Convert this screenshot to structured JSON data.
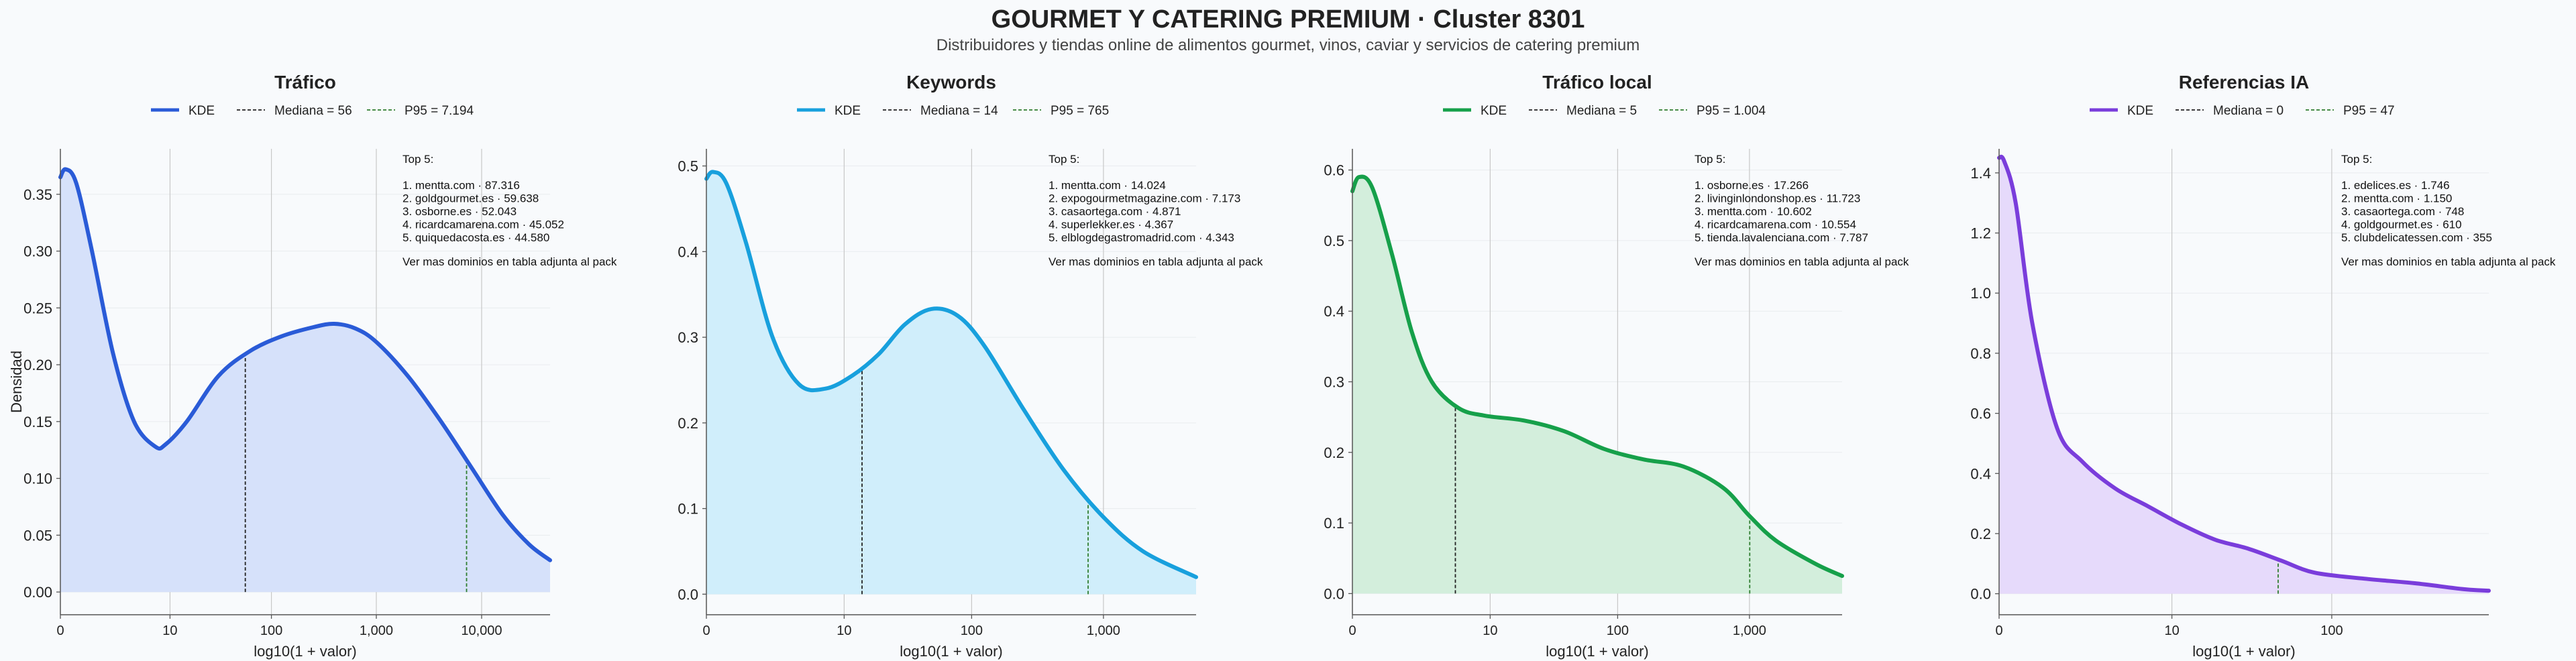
{
  "title": "GOURMET Y CATERING PREMIUM · Cluster 8301",
  "subtitle": "Distribuidores y tiendas online de alimentos gourmet, vinos, caviar y servicios de catering premium",
  "ylabel": "Densidad",
  "chart_data": [
    {
      "type": "area",
      "title": "Tráfico",
      "xlabel": "log10(1 + valor)",
      "ylabel": "Densidad",
      "color": "#2a5bd7",
      "fill": "#d6e1fa",
      "xlim": [
        0,
        4.65
      ],
      "ylim": [
        -0.02,
        0.39
      ],
      "y_ticks": [
        0.0,
        0.05,
        0.1,
        0.15,
        0.2,
        0.25,
        0.3,
        0.35
      ],
      "y_tick_labels": [
        "0.00",
        "0.05",
        "0.10",
        "0.15",
        "0.20",
        "0.25",
        "0.30",
        "0.35"
      ],
      "x_ticks": [
        0,
        1.041,
        2.004,
        3.0,
        4.0
      ],
      "x_tick_labels": [
        "0",
        "10",
        "100",
        "1,000",
        "10,000"
      ],
      "legend": {
        "kde": "KDE",
        "median": "Mediana = 56",
        "p95": "P95 = 7.194"
      },
      "median_x": 1.756,
      "p95_x": 3.857,
      "series": [
        {
          "name": "KDE",
          "x": [
            0,
            0.05,
            0.15,
            0.3,
            0.5,
            0.7,
            0.9,
            1.0,
            1.2,
            1.5,
            1.8,
            2.1,
            2.4,
            2.6,
            2.8,
            3.0,
            3.3,
            3.6,
            3.9,
            4.2,
            4.45,
            4.65
          ],
          "y": [
            0.365,
            0.372,
            0.36,
            0.3,
            0.21,
            0.15,
            0.128,
            0.13,
            0.15,
            0.19,
            0.212,
            0.225,
            0.233,
            0.236,
            0.232,
            0.22,
            0.19,
            0.152,
            0.11,
            0.068,
            0.042,
            0.028
          ]
        }
      ]
    },
    {
      "type": "area",
      "title": "Keywords",
      "xlabel": "log10(1 + valor)",
      "ylabel": "",
      "color": "#18a0dd",
      "fill": "#d0eefb",
      "xlim": [
        0,
        3.7
      ],
      "ylim": [
        -0.024,
        0.52
      ],
      "y_ticks": [
        0.0,
        0.1,
        0.2,
        0.3,
        0.4,
        0.5
      ],
      "y_tick_labels": [
        "0.0",
        "0.1",
        "0.2",
        "0.3",
        "0.4",
        "0.5"
      ],
      "x_ticks": [
        0,
        1.041,
        2.004,
        3.0
      ],
      "x_tick_labels": [
        "0",
        "10",
        "100",
        "1,000"
      ],
      "legend": {
        "kde": "KDE",
        "median": "Mediana = 14",
        "p95": "P95 = 765"
      },
      "median_x": 1.176,
      "p95_x": 2.884,
      "series": [
        {
          "name": "KDE",
          "x": [
            0,
            0.05,
            0.15,
            0.3,
            0.5,
            0.7,
            0.9,
            1.1,
            1.3,
            1.5,
            1.7,
            1.9,
            2.1,
            2.4,
            2.7,
            3.0,
            3.3,
            3.7
          ],
          "y": [
            0.485,
            0.493,
            0.48,
            0.41,
            0.3,
            0.245,
            0.24,
            0.255,
            0.28,
            0.315,
            0.333,
            0.325,
            0.29,
            0.215,
            0.145,
            0.09,
            0.05,
            0.02
          ]
        }
      ]
    },
    {
      "type": "area",
      "title": "Tráfico local",
      "xlabel": "log10(1 + valor)",
      "ylabel": "",
      "color": "#16a04a",
      "fill": "#d3eedc",
      "xlim": [
        0,
        3.7
      ],
      "ylim": [
        -0.03,
        0.63
      ],
      "y_ticks": [
        0.0,
        0.1,
        0.2,
        0.3,
        0.4,
        0.5,
        0.6
      ],
      "y_tick_labels": [
        "0.0",
        "0.1",
        "0.2",
        "0.3",
        "0.4",
        "0.5",
        "0.6"
      ],
      "x_ticks": [
        0,
        1.041,
        2.004,
        3.0
      ],
      "x_tick_labels": [
        "0",
        "10",
        "100",
        "1,000"
      ],
      "legend": {
        "kde": "KDE",
        "median": "Mediana = 5",
        "p95": "P95 = 1.004"
      },
      "median_x": 0.778,
      "p95_x": 3.002,
      "series": [
        {
          "name": "KDE",
          "x": [
            0,
            0.05,
            0.15,
            0.3,
            0.45,
            0.6,
            0.8,
            1.0,
            1.3,
            1.6,
            1.9,
            2.2,
            2.5,
            2.8,
            3.0,
            3.2,
            3.5,
            3.7
          ],
          "y": [
            0.57,
            0.59,
            0.575,
            0.48,
            0.37,
            0.3,
            0.263,
            0.252,
            0.245,
            0.23,
            0.205,
            0.19,
            0.18,
            0.15,
            0.11,
            0.075,
            0.042,
            0.025
          ]
        }
      ]
    },
    {
      "type": "area",
      "title": "Referencias IA",
      "xlabel": "log10(1 + valor)",
      "ylabel": "",
      "color": "#7a3ddb",
      "fill": "#e6dafb",
      "xlim": [
        0,
        2.95
      ],
      "ylim": [
        -0.07,
        1.48
      ],
      "y_ticks": [
        0.0,
        0.2,
        0.4,
        0.6,
        0.8,
        1.0,
        1.2,
        1.4
      ],
      "y_tick_labels": [
        "0.0",
        "0.2",
        "0.4",
        "0.6",
        "0.8",
        "1.0",
        "1.2",
        "1.4"
      ],
      "x_ticks": [
        0,
        1.041,
        2.004
      ],
      "x_tick_labels": [
        "0",
        "10",
        "100"
      ],
      "legend": {
        "kde": "KDE",
        "median": "Mediana = 0",
        "p95": "P95 = 47"
      },
      "median_x": 0.0,
      "p95_x": 1.681,
      "series": [
        {
          "name": "KDE",
          "x": [
            0,
            0.03,
            0.1,
            0.2,
            0.35,
            0.5,
            0.7,
            0.9,
            1.1,
            1.3,
            1.5,
            1.7,
            1.9,
            2.2,
            2.5,
            2.8,
            2.95
          ],
          "y": [
            1.45,
            1.44,
            1.3,
            0.9,
            0.55,
            0.44,
            0.35,
            0.29,
            0.23,
            0.18,
            0.15,
            0.11,
            0.07,
            0.05,
            0.035,
            0.015,
            0.01
          ]
        }
      ]
    }
  ],
  "top5": [
    {
      "heading": "Top 5:",
      "items": [
        "1. mentta.com · 87.316",
        "2. goldgourmet.es · 59.638",
        "3. osborne.es · 52.043",
        "4. ricardcamarena.com · 45.052",
        "5. quiquedacosta.es · 44.580"
      ],
      "note": "Ver mas dominios en tabla adjunta al pack"
    },
    {
      "heading": "Top 5:",
      "items": [
        "1. mentta.com · 14.024",
        "2. expogourmetmagazine.com · 7.173",
        "3. casaortega.com · 4.871",
        "4. superlekker.es · 4.367",
        "5. elblogdegastromadrid.com · 4.343"
      ],
      "note": "Ver mas dominios en tabla adjunta al pack"
    },
    {
      "heading": "Top 5:",
      "items": [
        "1. osborne.es · 17.266",
        "2. livinginlondonshop.es · 11.723",
        "3. mentta.com · 10.602",
        "4. ricardcamarena.com · 10.554",
        "5. tienda.lavalenciana.com · 7.787"
      ],
      "note": "Ver mas dominios en tabla adjunta al pack"
    },
    {
      "heading": "Top 5:",
      "items": [
        "1. edelices.es · 1.746",
        "2. mentta.com · 1.150",
        "3. casaortega.com · 748",
        "4. goldgourmet.es · 610",
        "5. clubdelicatessen.com · 355"
      ],
      "note": "Ver mas dominios en tabla adjunta al pack"
    }
  ]
}
